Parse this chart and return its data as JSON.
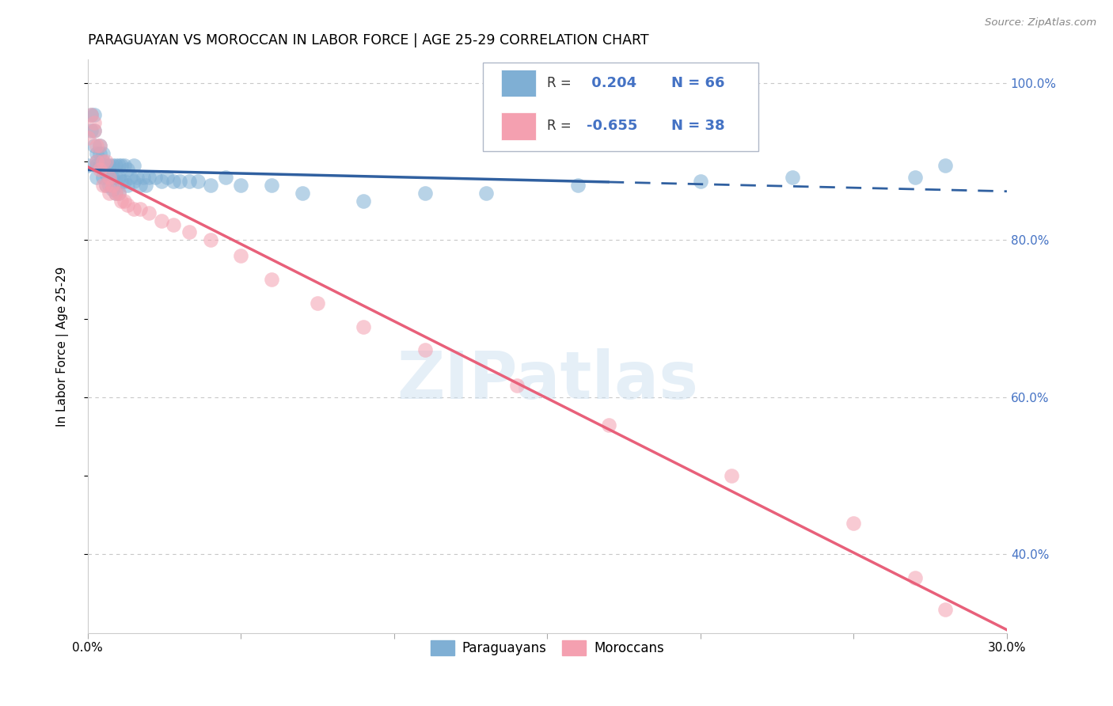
{
  "title": "PARAGUAYAN VS MOROCCAN IN LABOR FORCE | AGE 25-29 CORRELATION CHART",
  "source": "Source: ZipAtlas.com",
  "ylabel": "In Labor Force | Age 25-29",
  "watermark": "ZIPatlas",
  "xlim": [
    0.0,
    0.3
  ],
  "ylim": [
    0.3,
    1.03
  ],
  "paraguayan_color": "#7fafd4",
  "moroccan_color": "#f4a0b0",
  "paraguayan_R": 0.204,
  "paraguayan_N": 66,
  "moroccan_R": -0.655,
  "moroccan_N": 38,
  "blue_line_color": "#3060a0",
  "pink_line_color": "#e8607a",
  "grid_color": "#c8c8c8",
  "right_axis_color": "#4472c4",
  "legend_edge_color": "#b0b8c8",
  "par_x": [
    0.0,
    0.001,
    0.001,
    0.002,
    0.002,
    0.002,
    0.003,
    0.003,
    0.003,
    0.003,
    0.004,
    0.004,
    0.004,
    0.005,
    0.005,
    0.005,
    0.005,
    0.006,
    0.006,
    0.006,
    0.007,
    0.007,
    0.007,
    0.008,
    0.008,
    0.008,
    0.009,
    0.009,
    0.009,
    0.01,
    0.01,
    0.01,
    0.011,
    0.011,
    0.012,
    0.012,
    0.013,
    0.013,
    0.014,
    0.015,
    0.015,
    0.016,
    0.017,
    0.018,
    0.019,
    0.02,
    0.022,
    0.024,
    0.026,
    0.028,
    0.03,
    0.033,
    0.036,
    0.04,
    0.045,
    0.05,
    0.06,
    0.07,
    0.09,
    0.11,
    0.13,
    0.16,
    0.2,
    0.23,
    0.27,
    0.28
  ],
  "par_y": [
    0.895,
    0.96,
    0.94,
    0.96,
    0.94,
    0.92,
    0.91,
    0.9,
    0.895,
    0.88,
    0.92,
    0.91,
    0.895,
    0.91,
    0.9,
    0.895,
    0.88,
    0.895,
    0.885,
    0.87,
    0.895,
    0.88,
    0.87,
    0.895,
    0.88,
    0.865,
    0.895,
    0.88,
    0.86,
    0.895,
    0.88,
    0.86,
    0.895,
    0.875,
    0.895,
    0.875,
    0.89,
    0.87,
    0.88,
    0.895,
    0.875,
    0.88,
    0.87,
    0.88,
    0.87,
    0.88,
    0.88,
    0.875,
    0.88,
    0.875,
    0.875,
    0.875,
    0.875,
    0.87,
    0.88,
    0.87,
    0.87,
    0.86,
    0.85,
    0.86,
    0.86,
    0.87,
    0.875,
    0.88,
    0.88,
    0.895
  ],
  "mor_x": [
    0.0,
    0.001,
    0.002,
    0.002,
    0.003,
    0.003,
    0.004,
    0.004,
    0.005,
    0.005,
    0.006,
    0.006,
    0.007,
    0.007,
    0.008,
    0.009,
    0.01,
    0.011,
    0.012,
    0.013,
    0.015,
    0.017,
    0.02,
    0.024,
    0.028,
    0.033,
    0.04,
    0.05,
    0.06,
    0.075,
    0.09,
    0.11,
    0.14,
    0.17,
    0.21,
    0.25,
    0.27,
    0.28
  ],
  "mor_y": [
    0.93,
    0.96,
    0.95,
    0.94,
    0.92,
    0.9,
    0.92,
    0.89,
    0.9,
    0.87,
    0.9,
    0.87,
    0.88,
    0.86,
    0.87,
    0.86,
    0.86,
    0.85,
    0.85,
    0.845,
    0.84,
    0.84,
    0.835,
    0.825,
    0.82,
    0.81,
    0.8,
    0.78,
    0.75,
    0.72,
    0.69,
    0.66,
    0.615,
    0.565,
    0.5,
    0.44,
    0.37,
    0.33
  ]
}
